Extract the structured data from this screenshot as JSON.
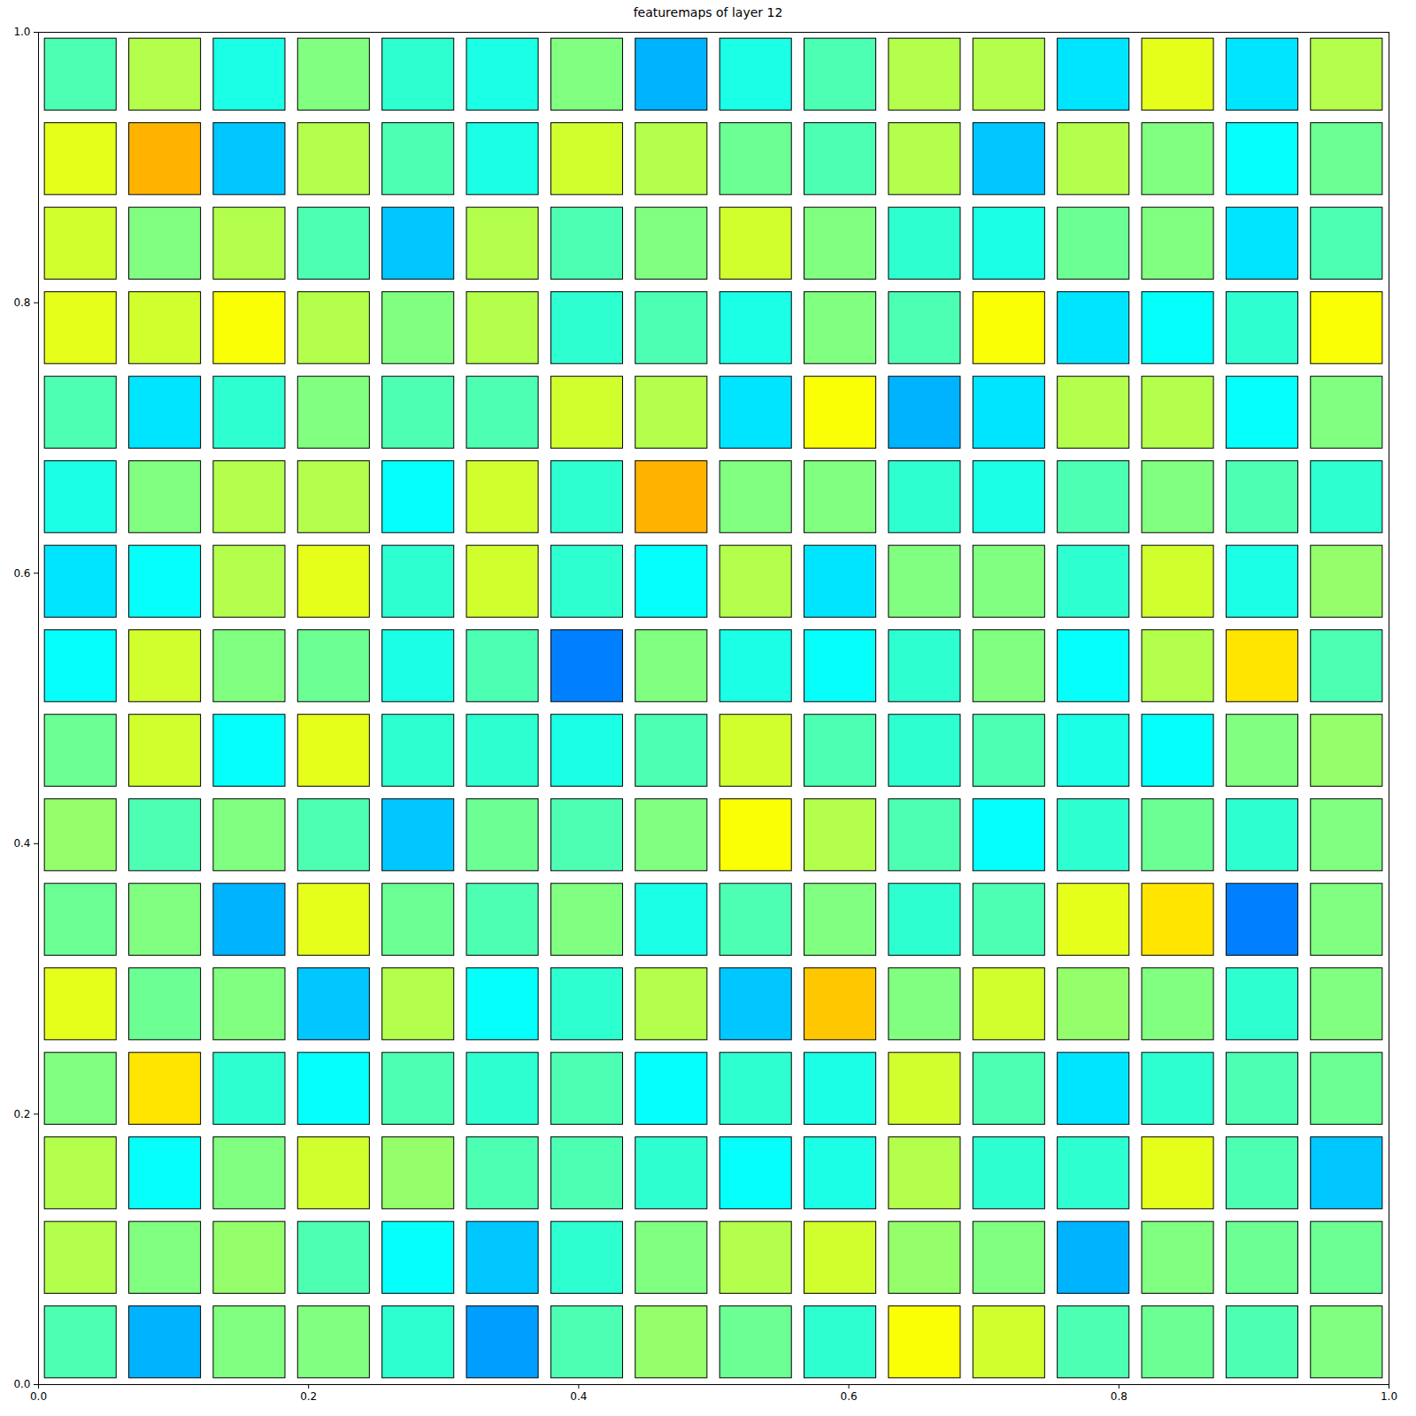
{
  "chart_data": {
    "type": "image_grid",
    "title": "featuremaps of layer 12",
    "xlim": [
      0,
      1
    ],
    "ylim": [
      0,
      1
    ],
    "xticks": [
      {
        "value": 0,
        "label": "0.0"
      },
      0.2,
      0.4,
      0.6,
      0.8,
      {
        "value": 1,
        "label": "1.0"
      }
    ],
    "yticks": [
      {
        "value": 0,
        "label": "0.0"
      },
      0.2,
      0.4,
      0.6,
      0.8,
      {
        "value": 1,
        "label": "1.0"
      }
    ],
    "color": "jet",
    "color_range": [
      0,
      1
    ],
    "cells": [
      [
        0.45,
        0.55,
        0.4,
        0.5,
        0.42,
        0.4,
        0.5,
        0.3,
        0.4,
        0.45,
        0.55,
        0.55,
        0.35,
        0.6,
        0.35,
        0.55
      ],
      [
        0.6,
        0.7,
        0.32,
        0.55,
        0.45,
        0.4,
        0.58,
        0.55,
        0.48,
        0.45,
        0.55,
        0.32,
        0.55,
        0.5,
        0.38,
        0.48
      ],
      [
        0.58,
        0.5,
        0.55,
        0.45,
        0.32,
        0.55,
        0.45,
        0.5,
        0.58,
        0.5,
        0.42,
        0.4,
        0.48,
        0.5,
        0.35,
        0.45
      ],
      [
        0.6,
        0.58,
        0.62,
        0.55,
        0.5,
        0.55,
        0.42,
        0.45,
        0.4,
        0.5,
        0.45,
        0.62,
        0.35,
        0.38,
        0.42,
        0.62
      ],
      [
        0.45,
        0.35,
        0.42,
        0.5,
        0.45,
        0.45,
        0.58,
        0.55,
        0.35,
        0.62,
        0.3,
        0.35,
        0.55,
        0.55,
        0.38,
        0.5
      ],
      [
        0.4,
        0.5,
        0.55,
        0.55,
        0.38,
        0.58,
        0.42,
        0.7,
        0.5,
        0.5,
        0.42,
        0.4,
        0.45,
        0.5,
        0.45,
        0.42
      ],
      [
        0.35,
        0.38,
        0.55,
        0.6,
        0.42,
        0.58,
        0.42,
        0.38,
        0.55,
        0.35,
        0.5,
        0.5,
        0.42,
        0.58,
        0.4,
        0.52
      ],
      [
        0.38,
        0.58,
        0.5,
        0.48,
        0.4,
        0.45,
        0.25,
        0.5,
        0.4,
        0.38,
        0.42,
        0.5,
        0.38,
        0.55,
        0.65,
        0.45
      ],
      [
        0.48,
        0.58,
        0.38,
        0.6,
        0.42,
        0.42,
        0.4,
        0.45,
        0.58,
        0.45,
        0.42,
        0.45,
        0.4,
        0.38,
        0.5,
        0.52
      ],
      [
        0.52,
        0.45,
        0.5,
        0.45,
        0.32,
        0.48,
        0.45,
        0.5,
        0.62,
        0.55,
        0.45,
        0.38,
        0.42,
        0.48,
        0.42,
        0.5
      ],
      [
        0.48,
        0.5,
        0.3,
        0.6,
        0.48,
        0.45,
        0.5,
        0.4,
        0.45,
        0.5,
        0.42,
        0.45,
        0.6,
        0.65,
        0.25,
        0.5
      ],
      [
        0.6,
        0.48,
        0.5,
        0.32,
        0.55,
        0.38,
        0.42,
        0.55,
        0.32,
        0.68,
        0.5,
        0.58,
        0.52,
        0.5,
        0.42,
        0.5
      ],
      [
        0.5,
        0.65,
        0.42,
        0.38,
        0.45,
        0.42,
        0.45,
        0.38,
        0.42,
        0.4,
        0.58,
        0.45,
        0.35,
        0.42,
        0.45,
        0.48
      ],
      [
        0.55,
        0.38,
        0.5,
        0.58,
        0.52,
        0.45,
        0.45,
        0.42,
        0.38,
        0.4,
        0.55,
        0.42,
        0.42,
        0.6,
        0.45,
        0.32
      ],
      [
        0.55,
        0.5,
        0.52,
        0.45,
        0.38,
        0.32,
        0.42,
        0.5,
        0.55,
        0.58,
        0.52,
        0.5,
        0.3,
        0.5,
        0.48,
        0.48
      ],
      [
        0.45,
        0.3,
        0.5,
        0.5,
        0.42,
        0.28,
        0.45,
        0.52,
        0.48,
        0.42,
        0.62,
        0.58,
        0.45,
        0.48,
        0.45,
        0.5
      ]
    ]
  }
}
